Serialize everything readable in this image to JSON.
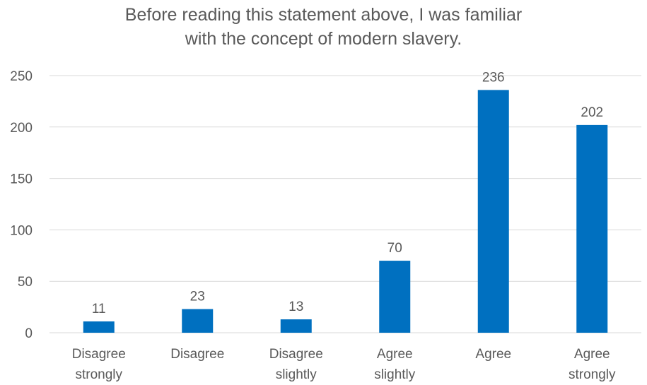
{
  "chart_data": {
    "type": "bar",
    "title_lines": [
      "Before reading this statement above, I was familiar",
      "with the concept of modern slavery."
    ],
    "categories": [
      [
        "Disagree",
        "strongly"
      ],
      [
        "Disagree"
      ],
      [
        "Disagree",
        "slightly"
      ],
      [
        "Agree",
        "slightly"
      ],
      [
        "Agree"
      ],
      [
        "Agree",
        "strongly"
      ]
    ],
    "values": [
      11,
      23,
      13,
      70,
      236,
      202
    ],
    "data_labels": [
      "11",
      "23",
      "13",
      "70",
      "236",
      "202"
    ],
    "ylim": [
      0,
      250
    ],
    "yticks": [
      "0",
      "50",
      "100",
      "150",
      "200",
      "250"
    ],
    "xlabel": "",
    "ylabel": "",
    "grid": true,
    "bar_color": "#0070C0"
  }
}
